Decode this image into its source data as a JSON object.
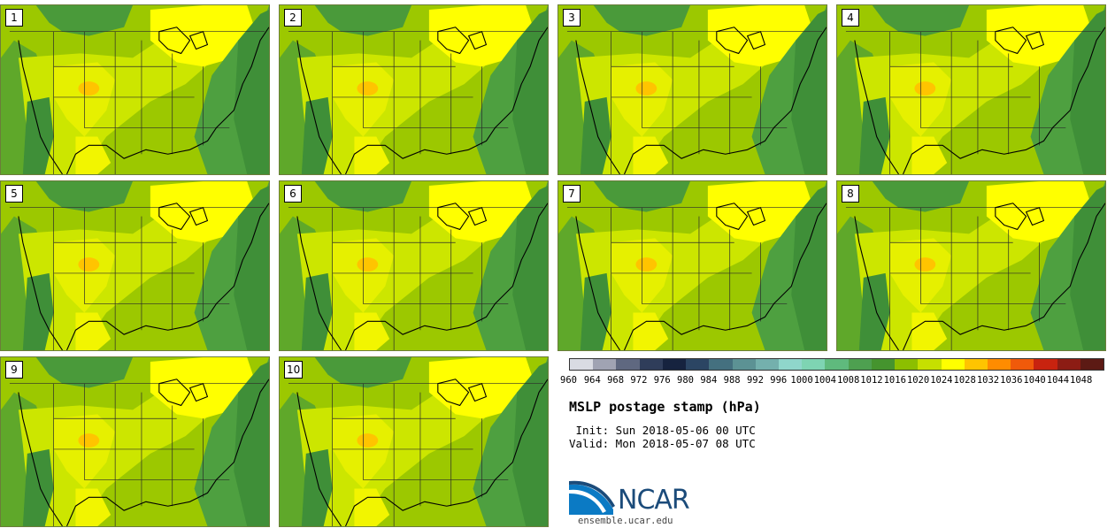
{
  "panels": [
    {
      "label": "1"
    },
    {
      "label": "2"
    },
    {
      "label": "3"
    },
    {
      "label": "4"
    },
    {
      "label": "5"
    },
    {
      "label": "6"
    },
    {
      "label": "7"
    },
    {
      "label": "8"
    },
    {
      "label": "9"
    },
    {
      "label": "10"
    }
  ],
  "colorbar": {
    "colors": [
      "#d9dbe3",
      "#a0a3b3",
      "#5f6880",
      "#2f3d5a",
      "#16233f",
      "#2b4563",
      "#44707f",
      "#5c9294",
      "#74b0ad",
      "#8fd6cb",
      "#7ed4b3",
      "#5fba7d",
      "#4ea050",
      "#45942e",
      "#8cbf00",
      "#c6e000",
      "#ffff00",
      "#ffc400",
      "#ff8c00",
      "#f05a0a",
      "#c8230f",
      "#8c1c14",
      "#5c1a14"
    ],
    "labels": [
      "960",
      "964",
      "968",
      "972",
      "976",
      "980",
      "984",
      "988",
      "992",
      "996",
      "1000",
      "1004",
      "1008",
      "1012",
      "1016",
      "1020",
      "1024",
      "1028",
      "1032",
      "1036",
      "1040",
      "1044",
      "1048"
    ]
  },
  "info": {
    "title": "MSLP postage stamp (hPa)",
    "init": " Init: Sun 2018-05-06 00 UTC",
    "valid": "Valid: Mon 2018-05-07 08 UTC"
  },
  "branding": {
    "logo_text": "NCAR",
    "url": "ensemble.ucar.edu"
  }
}
